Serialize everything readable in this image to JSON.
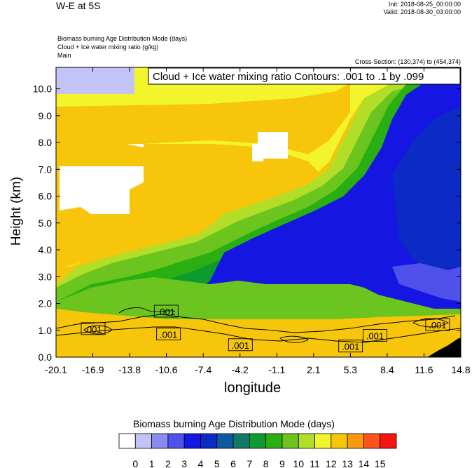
{
  "header": {
    "title": "W-E at 5S",
    "init": "Init: 2018-08-25_00:00:00",
    "valid": "Valid: 2018-08-30_03:00:00",
    "fields": [
      "Biomass burning Age Distribution Mode    (days)",
      "Cloud + Ice water mixing ratio    (g/kg)",
      "Main"
    ],
    "cross_section": "Cross-Section: (130,374) to (454,374)"
  },
  "chart_data": {
    "type": "heatmap",
    "title": "W-E at 5S",
    "xlabel": "longitude",
    "ylabel": "Height (km)",
    "xlim": [
      -20.1,
      14.8
    ],
    "ylim": [
      0.0,
      10.8
    ],
    "xticks": [
      "-20.1",
      "-16.9",
      "-13.8",
      "-10.6",
      "-7.4",
      "-4.2",
      "-1.1",
      "2.1",
      "5.3",
      "8.4",
      "11.6",
      "14.8"
    ],
    "yticks": [
      "0.0",
      "1.0",
      "2.0",
      "3.0",
      "4.0",
      "5.0",
      "6.0",
      "7.0",
      "8.0",
      "9.0",
      "10.0"
    ],
    "ytick_values": [
      0,
      1,
      2,
      3,
      4,
      5,
      6,
      7,
      8,
      9,
      10
    ],
    "contour_annotation": "Cloud + Ice water mixing ratio Contours: .001 to .1 by .099",
    "contour_labels": [
      {
        "text": ".001",
        "x": -10.6,
        "y": 1.7
      },
      {
        "text": ".001",
        "x": -16.9,
        "y": 1.05
      },
      {
        "text": ".001",
        "x": -10.4,
        "y": 0.85
      },
      {
        "text": ".001",
        "x": -4.2,
        "y": 0.45
      },
      {
        "text": ".001",
        "x": 5.3,
        "y": 0.4
      },
      {
        "text": ".001",
        "x": 7.4,
        "y": 0.8
      },
      {
        "text": ".001",
        "x": 12.8,
        "y": 1.2
      }
    ],
    "colorbar": {
      "title": "Biomass burning Age Distribution Mode  (days)",
      "labels": [
        "0",
        "1",
        "2",
        "3",
        "4",
        "5",
        "6",
        "7",
        "8",
        "9",
        "10",
        "11",
        "12",
        "13",
        "14",
        "15"
      ],
      "colors": [
        "#ffffff",
        "#c3c3f7",
        "#8a8af0",
        "#5050ea",
        "#1616e3",
        "#0c2ac4",
        "#0d5aa0",
        "#0f7a68",
        "#0d9a30",
        "#2aaf12",
        "#6cc51e",
        "#b2dd28",
        "#f2f52b",
        "#f7c60a",
        "#fa9810",
        "#fc5417",
        "#f5140f"
      ]
    }
  }
}
